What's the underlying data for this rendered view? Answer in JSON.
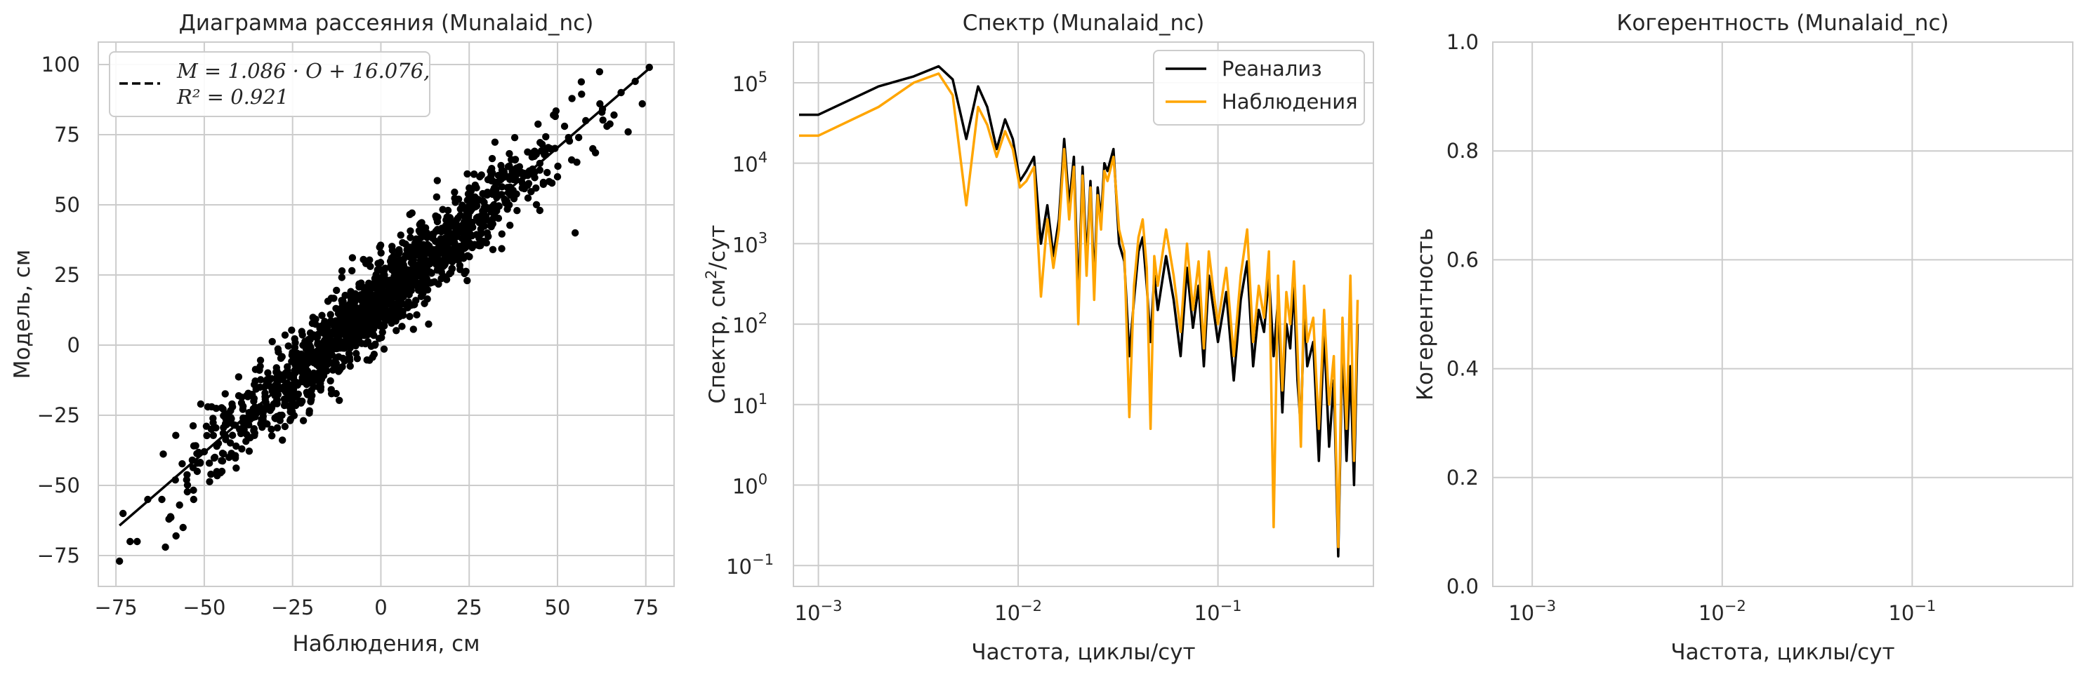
{
  "chart_data": [
    {
      "type": "scatter",
      "title": "Диаграмма рассеяния (Munalaid_nc)",
      "xlabel": "Наблюдения, см",
      "ylabel": "Модель, см",
      "xlim": [
        -80,
        83
      ],
      "ylim": [
        -86,
        108
      ],
      "xticks": [
        -75,
        -50,
        -25,
        0,
        25,
        50,
        75
      ],
      "yticks": [
        -75,
        -50,
        -25,
        0,
        25,
        50,
        75,
        100
      ],
      "grid": true,
      "legend_position": "top-left",
      "colors": {
        "points": "#000000",
        "fit": "#000000"
      },
      "fit_line": {
        "slope": 1.086,
        "intercept": 16.076,
        "r2": 0.921,
        "x_range": [
          -74,
          76
        ]
      },
      "legend": {
        "line1": "M = 1.086 · O + 16.076,",
        "line2": "R² = 0.921"
      },
      "points": [
        [
          -74,
          -77
        ],
        [
          -73,
          -60
        ],
        [
          -71,
          -70
        ],
        [
          -69,
          -70
        ],
        [
          -66,
          -55
        ],
        [
          -62,
          -55
        ],
        [
          -61,
          -72
        ],
        [
          -60,
          -62
        ],
        [
          -58,
          -68
        ],
        [
          -57,
          -57
        ],
        [
          -56,
          -65
        ],
        [
          -55,
          -48
        ],
        [
          -53,
          -55
        ],
        [
          -52,
          -45
        ],
        [
          -51,
          -21
        ],
        [
          -50,
          -38
        ],
        [
          -49,
          -22
        ],
        [
          -48,
          -30
        ],
        [
          -47,
          -40
        ],
        [
          -46,
          -35
        ],
        [
          -45,
          -45
        ],
        [
          -44,
          -28
        ],
        [
          -43,
          -40
        ],
        [
          -42,
          -22
        ],
        [
          -41,
          -36
        ],
        [
          -40,
          -30
        ],
        [
          -39,
          -26
        ],
        [
          -38,
          -18
        ],
        [
          -37,
          -33
        ],
        [
          -36,
          -20
        ],
        [
          -35,
          -24
        ],
        [
          -34,
          -28
        ],
        [
          -33,
          -15
        ],
        [
          -32,
          -22
        ],
        [
          -31,
          -30
        ],
        [
          -30,
          -18
        ],
        [
          -29,
          -12
        ],
        [
          -28,
          -25
        ],
        [
          -27,
          -10
        ],
        [
          -26,
          -19
        ],
        [
          -25,
          -15
        ],
        [
          -24,
          -5
        ],
        [
          -23,
          -20
        ],
        [
          -22,
          -8
        ],
        [
          -21,
          -14
        ],
        [
          -20,
          2
        ],
        [
          -19,
          -10
        ],
        [
          -18,
          -4
        ],
        [
          -17,
          -15
        ],
        [
          -16,
          6
        ],
        [
          -15,
          -2
        ],
        [
          -14,
          8
        ],
        [
          -13,
          -8
        ],
        [
          -12,
          3
        ],
        [
          -11,
          12
        ],
        [
          -10,
          0
        ],
        [
          -9,
          8
        ],
        [
          -8,
          15
        ],
        [
          -7,
          -3
        ],
        [
          -6,
          10
        ],
        [
          -5,
          18
        ],
        [
          -4,
          5
        ],
        [
          -3,
          12
        ],
        [
          -2,
          22
        ],
        [
          -1,
          8
        ],
        [
          0,
          16
        ],
        [
          1,
          25
        ],
        [
          2,
          10
        ],
        [
          3,
          20
        ],
        [
          4,
          28
        ],
        [
          5,
          14
        ],
        [
          6,
          24
        ],
        [
          7,
          32
        ],
        [
          8,
          18
        ],
        [
          9,
          26
        ],
        [
          10,
          36
        ],
        [
          11,
          22
        ],
        [
          12,
          30
        ],
        [
          13,
          40
        ],
        [
          14,
          26
        ],
        [
          15,
          34
        ],
        [
          16,
          44
        ],
        [
          17,
          30
        ],
        [
          18,
          38
        ],
        [
          19,
          48
        ],
        [
          20,
          34
        ],
        [
          21,
          42
        ],
        [
          22,
          52
        ],
        [
          23,
          38
        ],
        [
          24,
          46
        ],
        [
          25,
          56
        ],
        [
          26,
          42
        ],
        [
          27,
          50
        ],
        [
          28,
          60
        ],
        [
          29,
          46
        ],
        [
          30,
          54
        ],
        [
          31,
          62
        ],
        [
          32,
          50
        ],
        [
          33,
          58
        ],
        [
          34,
          64
        ],
        [
          35,
          52
        ],
        [
          36,
          60
        ],
        [
          38,
          66
        ],
        [
          40,
          56
        ],
        [
          42,
          62
        ],
        [
          44,
          68
        ],
        [
          45,
          48
        ],
        [
          46,
          58
        ],
        [
          48,
          70
        ],
        [
          50,
          60
        ],
        [
          52,
          78
        ],
        [
          54,
          66
        ],
        [
          55,
          40
        ],
        [
          56,
          74
        ],
        [
          58,
          80
        ],
        [
          60,
          70
        ],
        [
          62,
          86
        ],
        [
          64,
          78
        ],
        [
          66,
          82
        ],
        [
          68,
          90
        ],
        [
          70,
          76
        ],
        [
          72,
          94
        ],
        [
          74,
          86
        ],
        [
          76,
          99
        ]
      ],
      "dense_cloud": {
        "count": 1400,
        "x_center": 0,
        "x_sd": 24,
        "slope": 1.086,
        "intercept": 16.076,
        "resid_sd": 7.6
      }
    },
    {
      "type": "line",
      "title": "Спектр (Munalaid_nc)",
      "xlabel": "Частота, циклы/сут",
      "ylabel": "Спектр, см²/сут",
      "x_scale": "log",
      "y_scale": "log",
      "xlim": [
        0.00075,
        0.6
      ],
      "ylim": [
        0.055,
        320000
      ],
      "xticks": [
        {
          "base": "10",
          "exp": "−3"
        },
        {
          "base": "10",
          "exp": "−2"
        },
        {
          "base": "10",
          "exp": "−1"
        }
      ],
      "yticks": [
        {
          "base": "10",
          "exp": "5"
        },
        {
          "base": "10",
          "exp": "4"
        },
        {
          "base": "10",
          "exp": "3"
        },
        {
          "base": "10",
          "exp": "2"
        },
        {
          "base": "10",
          "exp": "1"
        },
        {
          "base": "10",
          "exp": "0"
        },
        {
          "base": "10",
          "exp": "−1"
        }
      ],
      "grid": true,
      "legend_position": "top-right",
      "series": [
        {
          "name": "Реанализ",
          "color": "#000000",
          "x": [
            0.0008,
            0.001,
            0.002,
            0.003,
            0.004,
            0.0047,
            0.0055,
            0.0063,
            0.007,
            0.0078,
            0.0086,
            0.0094,
            0.0102,
            0.011,
            0.012,
            0.013,
            0.014,
            0.015,
            0.016,
            0.017,
            0.018,
            0.019,
            0.02,
            0.021,
            0.022,
            0.023,
            0.024,
            0.025,
            0.026,
            0.027,
            0.028,
            0.03,
            0.032,
            0.034,
            0.036,
            0.038,
            0.04,
            0.042,
            0.044,
            0.046,
            0.048,
            0.05,
            0.055,
            0.06,
            0.065,
            0.07,
            0.075,
            0.08,
            0.085,
            0.09,
            0.095,
            0.1,
            0.11,
            0.12,
            0.13,
            0.14,
            0.15,
            0.16,
            0.17,
            0.18,
            0.19,
            0.2,
            0.21,
            0.22,
            0.23,
            0.24,
            0.25,
            0.26,
            0.27,
            0.28,
            0.3,
            0.32,
            0.34,
            0.36,
            0.38,
            0.4,
            0.42,
            0.44,
            0.46,
            0.48,
            0.5
          ],
          "y": [
            40000,
            40000,
            90000,
            120000,
            160000,
            110000,
            20000,
            90000,
            50000,
            15000,
            35000,
            20000,
            6000,
            8000,
            12000,
            1000,
            3000,
            700,
            2000,
            20000,
            3000,
            12000,
            200,
            9000,
            600,
            6000,
            300,
            5000,
            2000,
            10000,
            8000,
            15000,
            1000,
            600,
            40,
            200,
            800,
            1200,
            300,
            60,
            400,
            150,
            700,
            200,
            40,
            500,
            90,
            300,
            30,
            400,
            150,
            60,
            250,
            20,
            200,
            600,
            30,
            150,
            80,
            400,
            40,
            200,
            8,
            100,
            50,
            300,
            20,
            5,
            150,
            30,
            60,
            2,
            80,
            3,
            20,
            0.13,
            60,
            2,
            30,
            1,
            100
          ]
        },
        {
          "name": "Наблюдения",
          "color": "#ffa500",
          "x": [
            0.0008,
            0.001,
            0.002,
            0.003,
            0.004,
            0.0047,
            0.0055,
            0.0063,
            0.007,
            0.0078,
            0.0086,
            0.0094,
            0.0102,
            0.011,
            0.012,
            0.013,
            0.014,
            0.015,
            0.016,
            0.017,
            0.018,
            0.019,
            0.02,
            0.021,
            0.022,
            0.023,
            0.024,
            0.025,
            0.026,
            0.027,
            0.028,
            0.03,
            0.032,
            0.034,
            0.036,
            0.038,
            0.04,
            0.042,
            0.044,
            0.046,
            0.048,
            0.05,
            0.055,
            0.06,
            0.065,
            0.07,
            0.075,
            0.08,
            0.085,
            0.09,
            0.095,
            0.1,
            0.11,
            0.12,
            0.13,
            0.14,
            0.15,
            0.16,
            0.17,
            0.18,
            0.19,
            0.2,
            0.21,
            0.22,
            0.23,
            0.24,
            0.25,
            0.26,
            0.27,
            0.28,
            0.3,
            0.32,
            0.34,
            0.36,
            0.38,
            0.4,
            0.42,
            0.44,
            0.46,
            0.48,
            0.5
          ],
          "y": [
            22000,
            22000,
            50000,
            100000,
            130000,
            70000,
            3000,
            50000,
            30000,
            12000,
            25000,
            15000,
            5000,
            6000,
            9000,
            220,
            2000,
            500,
            1500,
            15000,
            2000,
            9000,
            100,
            7000,
            400,
            5000,
            200,
            4000,
            1500,
            8000,
            6000,
            12000,
            1500,
            800,
            7,
            300,
            1200,
            2000,
            500,
            5,
            700,
            300,
            1500,
            400,
            80,
            1000,
            150,
            600,
            50,
            800,
            250,
            100,
            500,
            40,
            400,
            1500,
            60,
            300,
            120,
            800,
            0.3,
            400,
            15,
            250,
            100,
            600,
            50,
            3,
            300,
            60,
            120,
            5,
            150,
            10,
            40,
            0.17,
            120,
            5,
            400,
            2,
            200
          ]
        }
      ]
    },
    {
      "type": "line",
      "title": "Когерентность (Munalaid_nc)",
      "xlabel": "Частота, циклы/сут",
      "ylabel": "Когерентность",
      "x_scale": "log",
      "xlim": [
        0.00062,
        0.7
      ],
      "ylim": [
        0,
        1
      ],
      "xticks": [
        {
          "base": "10",
          "exp": "−3"
        },
        {
          "base": "10",
          "exp": "−2"
        },
        {
          "base": "10",
          "exp": "−1"
        }
      ],
      "yticks": [
        "0.0",
        "0.2",
        "0.4",
        "0.6",
        "0.8",
        "1.0"
      ],
      "grid": true,
      "series": []
    }
  ]
}
